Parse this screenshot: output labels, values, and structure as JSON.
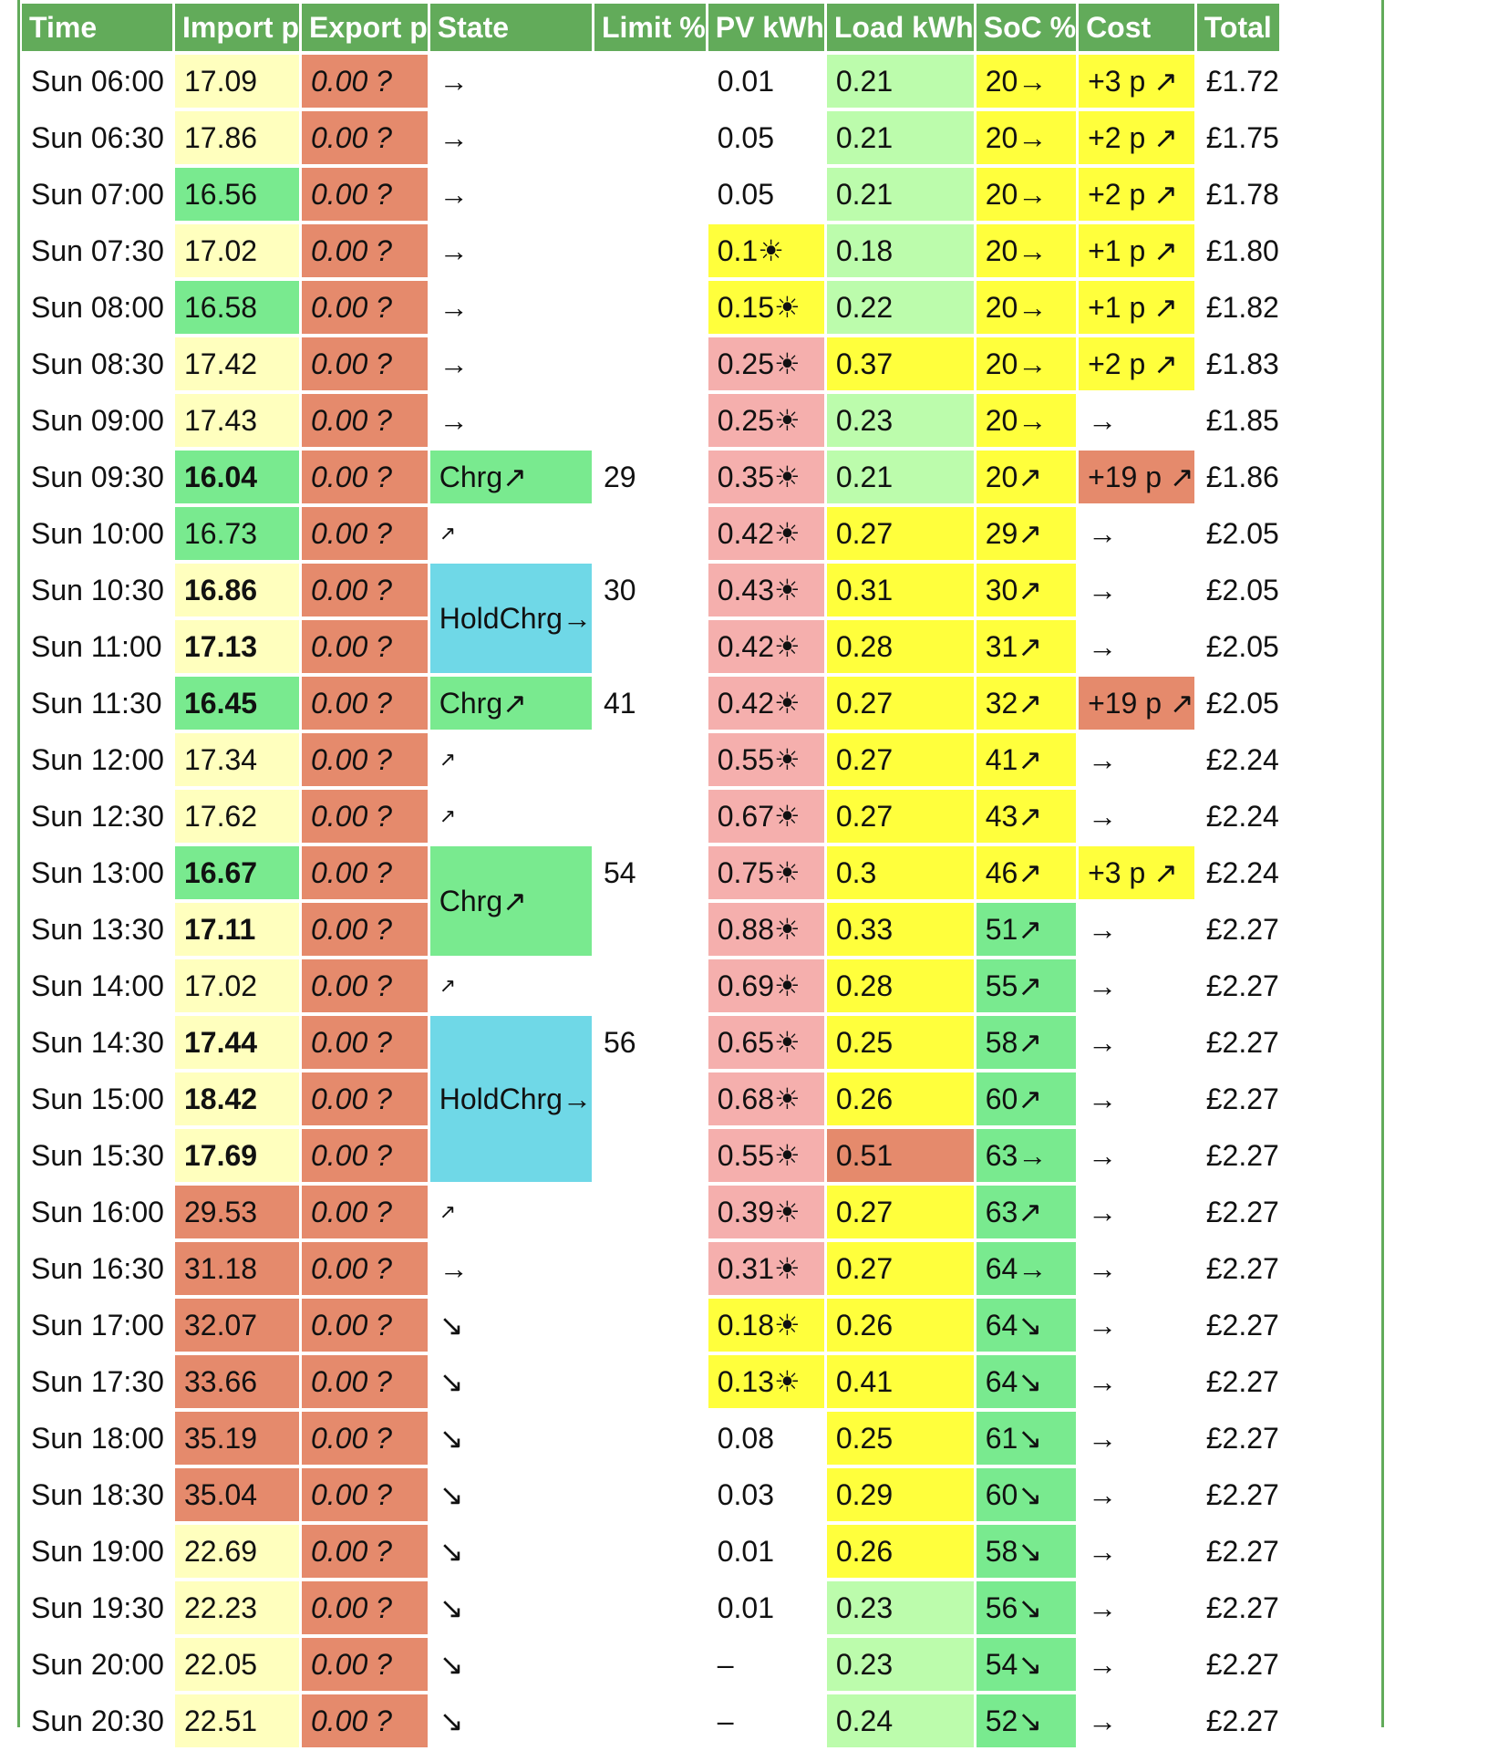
{
  "headers": [
    "Time",
    "Import p",
    "Export p",
    "State",
    "Limit %",
    "PV kWh",
    "Load kWh",
    "SoC %",
    "Cost",
    "Total"
  ],
  "colors": {
    "header": "#62ab5a",
    "light_yellow": "#ffffbe",
    "green": "#79ea8f",
    "red": "#e58a6c",
    "yellow": "#ffff3c",
    "light_green": "#bcfcac",
    "pink": "#f5afad",
    "cyan": "#6fd8e7"
  },
  "rows": [
    {
      "time": "Sun 06:00",
      "import": "17.09",
      "import_color": "lightyellow",
      "import_bold": false,
      "export": "0.00 ?",
      "state": "→",
      "state_color": "white",
      "state_span": 1,
      "limit": "",
      "pv": "0.01",
      "pv_color": "white",
      "load": "0.21",
      "load_color": "lightgreen",
      "soc": "20→",
      "soc_color": "yellow",
      "cost": "+3 p ↗",
      "cost_color": "yellow",
      "total": "£1.72"
    },
    {
      "time": "Sun 06:30",
      "import": "17.86",
      "import_color": "lightyellow",
      "import_bold": false,
      "export": "0.00 ?",
      "state": "→",
      "state_color": "white",
      "state_span": 1,
      "limit": "",
      "pv": "0.05",
      "pv_color": "white",
      "load": "0.21",
      "load_color": "lightgreen",
      "soc": "20→",
      "soc_color": "yellow",
      "cost": "+2 p ↗",
      "cost_color": "yellow",
      "total": "£1.75"
    },
    {
      "time": "Sun 07:00",
      "import": "16.56",
      "import_color": "green",
      "import_bold": false,
      "export": "0.00 ?",
      "state": "→",
      "state_color": "white",
      "state_span": 1,
      "limit": "",
      "pv": "0.05",
      "pv_color": "white",
      "load": "0.21",
      "load_color": "lightgreen",
      "soc": "20→",
      "soc_color": "yellow",
      "cost": "+2 p ↗",
      "cost_color": "yellow",
      "total": "£1.78"
    },
    {
      "time": "Sun 07:30",
      "import": "17.02",
      "import_color": "lightyellow",
      "import_bold": false,
      "export": "0.00 ?",
      "state": "→",
      "state_color": "white",
      "state_span": 1,
      "limit": "",
      "pv": "0.1☀",
      "pv_color": "yellow",
      "load": "0.18",
      "load_color": "lightgreen",
      "soc": "20→",
      "soc_color": "yellow",
      "cost": "+1 p ↗",
      "cost_color": "yellow",
      "total": "£1.80"
    },
    {
      "time": "Sun 08:00",
      "import": "16.58",
      "import_color": "green",
      "import_bold": false,
      "export": "0.00 ?",
      "state": "→",
      "state_color": "white",
      "state_span": 1,
      "limit": "",
      "pv": "0.15☀",
      "pv_color": "yellow",
      "load": "0.22",
      "load_color": "lightgreen",
      "soc": "20→",
      "soc_color": "yellow",
      "cost": "+1 p ↗",
      "cost_color": "yellow",
      "total": "£1.82"
    },
    {
      "time": "Sun 08:30",
      "import": "17.42",
      "import_color": "lightyellow",
      "import_bold": false,
      "export": "0.00 ?",
      "state": "→",
      "state_color": "white",
      "state_span": 1,
      "limit": "",
      "pv": "0.25☀",
      "pv_color": "pink",
      "load": "0.37",
      "load_color": "yellow",
      "soc": "20→",
      "soc_color": "yellow",
      "cost": "+2 p ↗",
      "cost_color": "yellow",
      "total": "£1.83"
    },
    {
      "time": "Sun 09:00",
      "import": "17.43",
      "import_color": "lightyellow",
      "import_bold": false,
      "export": "0.00 ?",
      "state": "→",
      "state_color": "white",
      "state_span": 1,
      "limit": "",
      "pv": "0.25☀",
      "pv_color": "pink",
      "load": "0.23",
      "load_color": "lightgreen",
      "soc": "20→",
      "soc_color": "yellow",
      "cost": "→",
      "cost_color": "white",
      "total": "£1.85"
    },
    {
      "time": "Sun 09:30",
      "import": "16.04",
      "import_color": "green",
      "import_bold": true,
      "export": "0.00 ?",
      "state": "Chrg↗",
      "state_color": "green",
      "state_span": 1,
      "limit": "29",
      "pv": "0.35☀",
      "pv_color": "pink",
      "load": "0.21",
      "load_color": "lightgreen",
      "soc": "20↗",
      "soc_color": "yellow",
      "cost": "+19 p ↗",
      "cost_color": "red",
      "total": "£1.86"
    },
    {
      "time": "Sun 10:00",
      "import": "16.73",
      "import_color": "green",
      "import_bold": false,
      "export": "0.00 ?",
      "state": "↗",
      "state_color": "white",
      "state_span": 1,
      "limit": "",
      "pv": "0.42☀",
      "pv_color": "pink",
      "load": "0.27",
      "load_color": "yellow",
      "soc": "29↗",
      "soc_color": "yellow",
      "cost": "→",
      "cost_color": "white",
      "total": "£2.05"
    },
    {
      "time": "Sun 10:30",
      "import": "16.86",
      "import_color": "lightyellow",
      "import_bold": true,
      "export": "0.00 ?",
      "state": "HoldChrg→",
      "state_color": "cyan",
      "state_span": 2,
      "limit": "30",
      "pv": "0.43☀",
      "pv_color": "pink",
      "load": "0.31",
      "load_color": "yellow",
      "soc": "30↗",
      "soc_color": "yellow",
      "cost": "→",
      "cost_color": "white",
      "total": "£2.05"
    },
    {
      "time": "Sun 11:00",
      "import": "17.13",
      "import_color": "lightyellow",
      "import_bold": true,
      "export": "0.00 ?",
      "state": null,
      "state_color": "",
      "state_span": 0,
      "limit": "",
      "pv": "0.42☀",
      "pv_color": "pink",
      "load": "0.28",
      "load_color": "yellow",
      "soc": "31↗",
      "soc_color": "yellow",
      "cost": "→",
      "cost_color": "white",
      "total": "£2.05"
    },
    {
      "time": "Sun 11:30",
      "import": "16.45",
      "import_color": "green",
      "import_bold": true,
      "export": "0.00 ?",
      "state": "Chrg↗",
      "state_color": "green",
      "state_span": 1,
      "limit": "41",
      "pv": "0.42☀",
      "pv_color": "pink",
      "load": "0.27",
      "load_color": "yellow",
      "soc": "32↗",
      "soc_color": "yellow",
      "cost": "+19 p ↗",
      "cost_color": "red",
      "total": "£2.05"
    },
    {
      "time": "Sun 12:00",
      "import": "17.34",
      "import_color": "lightyellow",
      "import_bold": false,
      "export": "0.00 ?",
      "state": "↗",
      "state_color": "white",
      "state_span": 1,
      "limit": "",
      "pv": "0.55☀",
      "pv_color": "pink",
      "load": "0.27",
      "load_color": "yellow",
      "soc": "41↗",
      "soc_color": "yellow",
      "cost": "→",
      "cost_color": "white",
      "total": "£2.24"
    },
    {
      "time": "Sun 12:30",
      "import": "17.62",
      "import_color": "lightyellow",
      "import_bold": false,
      "export": "0.00 ?",
      "state": "↗",
      "state_color": "white",
      "state_span": 1,
      "limit": "",
      "pv": "0.67☀",
      "pv_color": "pink",
      "load": "0.27",
      "load_color": "yellow",
      "soc": "43↗",
      "soc_color": "yellow",
      "cost": "→",
      "cost_color": "white",
      "total": "£2.24"
    },
    {
      "time": "Sun 13:00",
      "import": "16.67",
      "import_color": "green",
      "import_bold": true,
      "export": "0.00 ?",
      "state": "Chrg↗",
      "state_color": "green",
      "state_span": 2,
      "limit": "54",
      "pv": "0.75☀",
      "pv_color": "pink",
      "load": "0.3",
      "load_color": "yellow",
      "soc": "46↗",
      "soc_color": "yellow",
      "cost": "+3 p ↗",
      "cost_color": "yellow",
      "total": "£2.24"
    },
    {
      "time": "Sun 13:30",
      "import": "17.11",
      "import_color": "lightyellow",
      "import_bold": true,
      "export": "0.00 ?",
      "state": null,
      "state_color": "",
      "state_span": 0,
      "limit": "",
      "pv": "0.88☀",
      "pv_color": "pink",
      "load": "0.33",
      "load_color": "yellow",
      "soc": "51↗",
      "soc_color": "green",
      "cost": "→",
      "cost_color": "white",
      "total": "£2.27"
    },
    {
      "time": "Sun 14:00",
      "import": "17.02",
      "import_color": "lightyellow",
      "import_bold": false,
      "export": "0.00 ?",
      "state": "↗",
      "state_color": "white",
      "state_span": 1,
      "limit": "",
      "pv": "0.69☀",
      "pv_color": "pink",
      "load": "0.28",
      "load_color": "yellow",
      "soc": "55↗",
      "soc_color": "green",
      "cost": "→",
      "cost_color": "white",
      "total": "£2.27"
    },
    {
      "time": "Sun 14:30",
      "import": "17.44",
      "import_color": "lightyellow",
      "import_bold": true,
      "export": "0.00 ?",
      "state": "HoldChrg→",
      "state_color": "cyan",
      "state_span": 3,
      "limit": "56",
      "pv": "0.65☀",
      "pv_color": "pink",
      "load": "0.25",
      "load_color": "yellow",
      "soc": "58↗",
      "soc_color": "green",
      "cost": "→",
      "cost_color": "white",
      "total": "£2.27"
    },
    {
      "time": "Sun 15:00",
      "import": "18.42",
      "import_color": "lightyellow",
      "import_bold": true,
      "export": "0.00 ?",
      "state": null,
      "state_color": "",
      "state_span": 0,
      "limit": "",
      "pv": "0.68☀",
      "pv_color": "pink",
      "load": "0.26",
      "load_color": "yellow",
      "soc": "60↗",
      "soc_color": "green",
      "cost": "→",
      "cost_color": "white",
      "total": "£2.27"
    },
    {
      "time": "Sun 15:30",
      "import": "17.69",
      "import_color": "lightyellow",
      "import_bold": true,
      "export": "0.00 ?",
      "state": null,
      "state_color": "",
      "state_span": 0,
      "limit": "",
      "pv": "0.55☀",
      "pv_color": "pink",
      "load": "0.51",
      "load_color": "red",
      "soc": "63→",
      "soc_color": "green",
      "cost": "→",
      "cost_color": "white",
      "total": "£2.27"
    },
    {
      "time": "Sun 16:00",
      "import": "29.53",
      "import_color": "red",
      "import_bold": false,
      "export": "0.00 ?",
      "state": "↗",
      "state_color": "white",
      "state_span": 1,
      "limit": "",
      "pv": "0.39☀",
      "pv_color": "pink",
      "load": "0.27",
      "load_color": "yellow",
      "soc": "63↗",
      "soc_color": "green",
      "cost": "→",
      "cost_color": "white",
      "total": "£2.27"
    },
    {
      "time": "Sun 16:30",
      "import": "31.18",
      "import_color": "red",
      "import_bold": false,
      "export": "0.00 ?",
      "state": "→",
      "state_color": "white",
      "state_span": 1,
      "limit": "",
      "pv": "0.31☀",
      "pv_color": "pink",
      "load": "0.27",
      "load_color": "yellow",
      "soc": "64→",
      "soc_color": "green",
      "cost": "→",
      "cost_color": "white",
      "total": "£2.27"
    },
    {
      "time": "Sun 17:00",
      "import": "32.07",
      "import_color": "red",
      "import_bold": false,
      "export": "0.00 ?",
      "state": "↘",
      "state_color": "white",
      "state_span": 1,
      "limit": "",
      "pv": "0.18☀",
      "pv_color": "yellow",
      "load": "0.26",
      "load_color": "yellow",
      "soc": "64↘",
      "soc_color": "green",
      "cost": "→",
      "cost_color": "white",
      "total": "£2.27"
    },
    {
      "time": "Sun 17:30",
      "import": "33.66",
      "import_color": "red",
      "import_bold": false,
      "export": "0.00 ?",
      "state": "↘",
      "state_color": "white",
      "state_span": 1,
      "limit": "",
      "pv": "0.13☀",
      "pv_color": "yellow",
      "load": "0.41",
      "load_color": "yellow",
      "soc": "64↘",
      "soc_color": "green",
      "cost": "→",
      "cost_color": "white",
      "total": "£2.27"
    },
    {
      "time": "Sun 18:00",
      "import": "35.19",
      "import_color": "red",
      "import_bold": false,
      "export": "0.00 ?",
      "state": "↘",
      "state_color": "white",
      "state_span": 1,
      "limit": "",
      "pv": "0.08",
      "pv_color": "white",
      "load": "0.25",
      "load_color": "yellow",
      "soc": "61↘",
      "soc_color": "green",
      "cost": "→",
      "cost_color": "white",
      "total": "£2.27"
    },
    {
      "time": "Sun 18:30",
      "import": "35.04",
      "import_color": "red",
      "import_bold": false,
      "export": "0.00 ?",
      "state": "↘",
      "state_color": "white",
      "state_span": 1,
      "limit": "",
      "pv": "0.03",
      "pv_color": "white",
      "load": "0.29",
      "load_color": "yellow",
      "soc": "60↘",
      "soc_color": "green",
      "cost": "→",
      "cost_color": "white",
      "total": "£2.27"
    },
    {
      "time": "Sun 19:00",
      "import": "22.69",
      "import_color": "lightyellow",
      "import_bold": false,
      "export": "0.00 ?",
      "state": "↘",
      "state_color": "white",
      "state_span": 1,
      "limit": "",
      "pv": "0.01",
      "pv_color": "white",
      "load": "0.26",
      "load_color": "yellow",
      "soc": "58↘",
      "soc_color": "green",
      "cost": "→",
      "cost_color": "white",
      "total": "£2.27"
    },
    {
      "time": "Sun 19:30",
      "import": "22.23",
      "import_color": "lightyellow",
      "import_bold": false,
      "export": "0.00 ?",
      "state": "↘",
      "state_color": "white",
      "state_span": 1,
      "limit": "",
      "pv": "0.01",
      "pv_color": "white",
      "load": "0.23",
      "load_color": "lightgreen",
      "soc": "56↘",
      "soc_color": "green",
      "cost": "→",
      "cost_color": "white",
      "total": "£2.27"
    },
    {
      "time": "Sun 20:00",
      "import": "22.05",
      "import_color": "lightyellow",
      "import_bold": false,
      "export": "0.00 ?",
      "state": "↘",
      "state_color": "white",
      "state_span": 1,
      "limit": "",
      "pv": "–",
      "pv_color": "white",
      "load": "0.23",
      "load_color": "lightgreen",
      "soc": "54↘",
      "soc_color": "green",
      "cost": "→",
      "cost_color": "white",
      "total": "£2.27"
    },
    {
      "time": "Sun 20:30",
      "import": "22.51",
      "import_color": "lightyellow",
      "import_bold": false,
      "export": "0.00 ?",
      "state": "↘",
      "state_color": "white",
      "state_span": 1,
      "limit": "",
      "pv": "–",
      "pv_color": "white",
      "load": "0.24",
      "load_color": "lightgreen",
      "soc": "52↘",
      "soc_color": "green",
      "cost": "→",
      "cost_color": "white",
      "total": "£2.27"
    }
  ]
}
